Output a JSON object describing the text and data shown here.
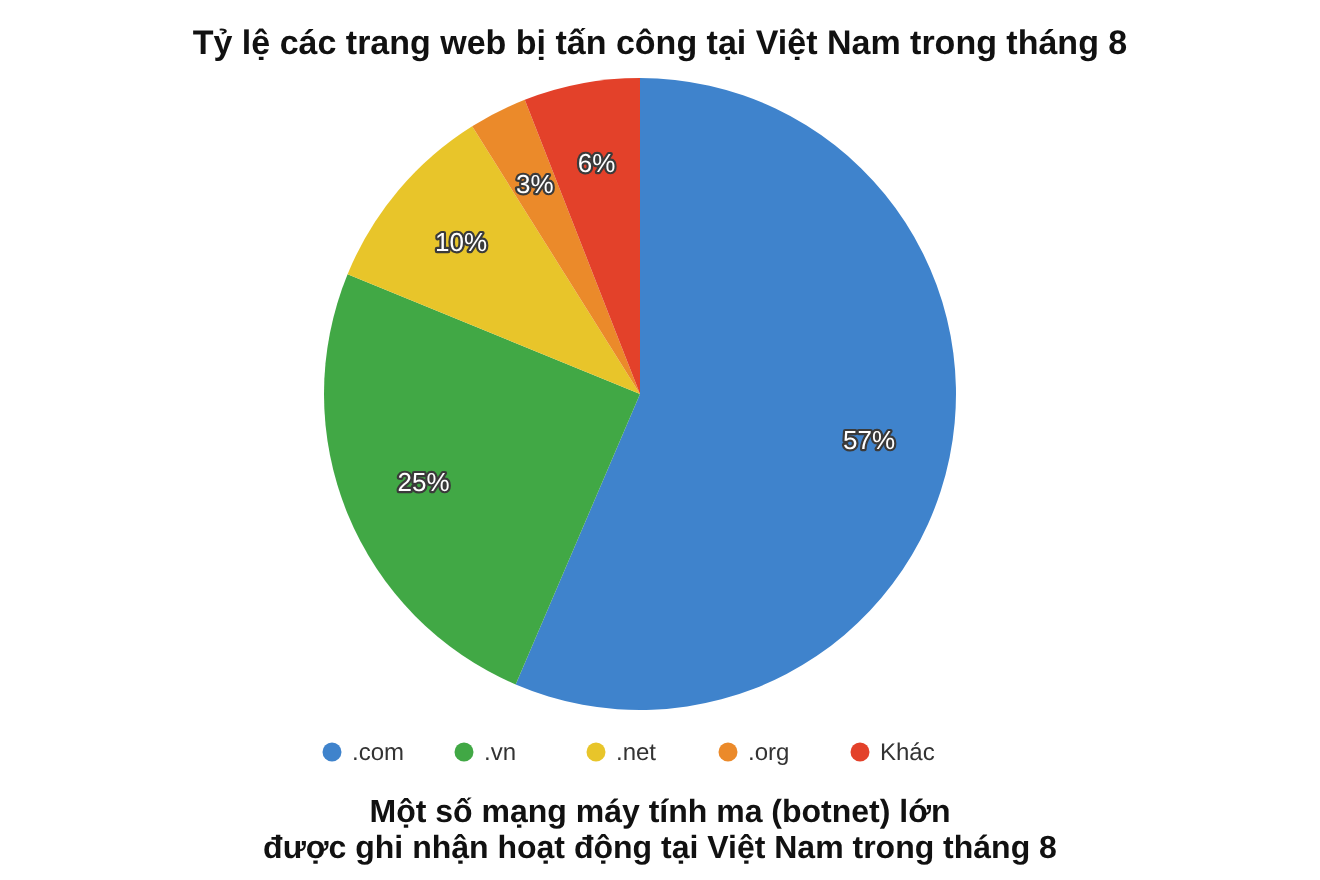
{
  "chart_data": {
    "type": "pie",
    "title": "Tỷ lệ các trang web bị tấn công tại Việt Nam trong tháng 8",
    "categories": [
      ".com",
      ".vn",
      ".net",
      ".org",
      "Khác"
    ],
    "values": [
      57,
      25,
      10,
      3,
      6
    ],
    "colors": [
      "#3f83cc",
      "#41a845",
      "#e8c52a",
      "#eb8a2a",
      "#e3412a"
    ],
    "value_labels": [
      "57%",
      "25%",
      "10%",
      "3%",
      "6%"
    ],
    "legend": "bottom",
    "annotations": [
      "Một số mạng máy tính ma (botnet) lớn\nđược ghi nhận hoạt động tại Việt Nam trong tháng 8"
    ]
  }
}
